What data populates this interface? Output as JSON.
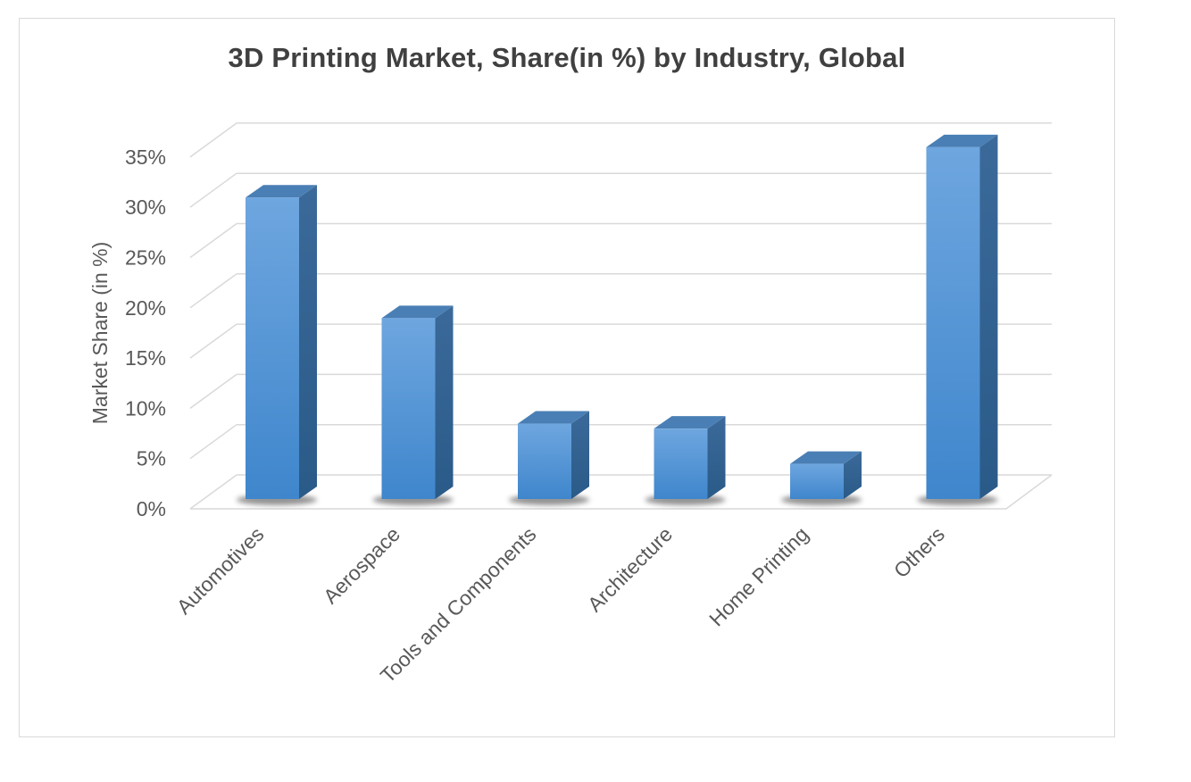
{
  "chart_data": {
    "type": "bar",
    "title": "3D Printing Market, Share(in %) by Industry, Global",
    "xlabel": "",
    "ylabel": "Market Share (in %)",
    "categories": [
      "Automotives",
      "Aerospace",
      "Tools and Components",
      "Architecture",
      "Home Printing",
      "Others"
    ],
    "values": [
      30,
      18,
      7.5,
      7,
      3.5,
      35
    ],
    "ylim": [
      0,
      35
    ],
    "y_ticks": [
      "0%",
      "5%",
      "10%",
      "15%",
      "20%",
      "25%",
      "30%",
      "35%"
    ],
    "grid": true,
    "style": "3d-column",
    "colors": {
      "bar_front": "#5b9bd5",
      "bar_side": "#2e5f8e",
      "bar_top": "#4a7fb5",
      "grid": "#d9d9d9"
    }
  }
}
